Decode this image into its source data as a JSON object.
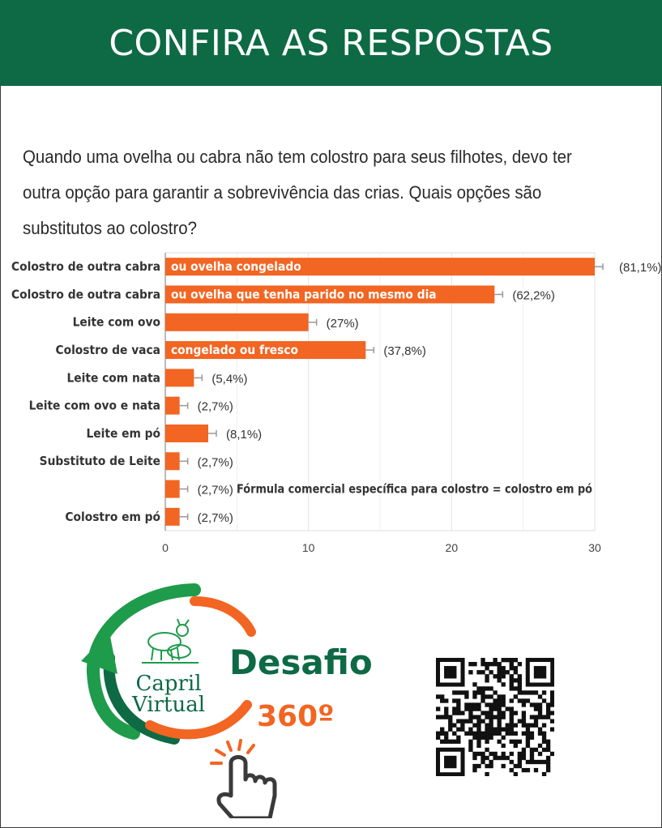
{
  "header": {
    "title": "CONFIRA AS RESPOSTAS"
  },
  "question": {
    "text": "Quando uma ovelha ou cabra não tem colostro para seus filhotes, devo ter outra opção para garantir a sobrevivência das crias. Quais opções são substitutos ao colostro?"
  },
  "colors": {
    "header_bg": "#0d6a45",
    "bar": "#f26522",
    "brand_green": "#0d6a45",
    "brand_orange": "#f26522"
  },
  "chart_data": {
    "type": "bar",
    "orientation": "horizontal",
    "categories": [
      "Colostro de outra cabra",
      "Colostro de outra cabra",
      "Leite com ovo",
      "Colostro de vaca",
      "Leite com nata",
      "Leite com ovo e  nata",
      "Leite em pó",
      "Substituto de Leite",
      "",
      "Colostro em pó"
    ],
    "bar_labels": [
      "ou ovelha congelado",
      "ou ovelha que tenha parido no mesmo dia",
      "",
      "congelado ou fresco",
      "",
      "",
      "",
      "",
      "",
      ""
    ],
    "values": [
      30,
      23,
      10,
      14,
      2,
      1,
      3,
      1,
      1,
      1
    ],
    "percent_labels": [
      "(81,1%)",
      "(62,2%)",
      "(27%)",
      "(37,8%)",
      "(5,4%)",
      "(2,7%)",
      "(8,1%)",
      "(2,7%)",
      "(2,7%)",
      "(2,7%)"
    ],
    "xlim": [
      0,
      30
    ],
    "xticks": [
      "0",
      "10",
      "20",
      "30"
    ],
    "grid": true,
    "annotation": "Fórmula comercial específica para colostro = colostro em pó"
  },
  "branding": {
    "logo_line1": "Capril",
    "logo_line2": "Virtual",
    "challenge_title": "Desafio",
    "challenge_number": "360º"
  }
}
